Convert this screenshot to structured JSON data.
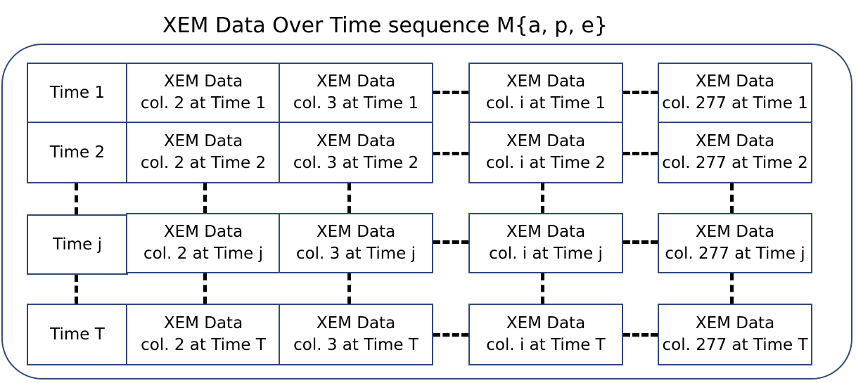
{
  "title": "XEM Data Over Time sequence M{a, p, e}",
  "colors": {
    "border": "#2f4a7c",
    "connector": "#000000"
  },
  "rows": [
    {
      "label": "Time 1",
      "cells": [
        {
          "line1": "XEM Data",
          "line2": "col. 2 at Time 1"
        },
        {
          "line1": "XEM Data",
          "line2": "col. 3 at Time 1"
        },
        {
          "line1": "XEM Data",
          "line2": "col. i at Time 1"
        },
        {
          "line1": "XEM Data",
          "line2": "col. 277 at Time 1"
        }
      ]
    },
    {
      "label": "Time 2",
      "cells": [
        {
          "line1": "XEM Data",
          "line2": "col. 2 at Time 2"
        },
        {
          "line1": "XEM Data",
          "line2": "col. 3 at Time 2"
        },
        {
          "line1": "XEM Data",
          "line2": "col. i at Time 2"
        },
        {
          "line1": "XEM Data",
          "line2": "col. 277 at Time 2"
        }
      ]
    },
    {
      "label": "Time j",
      "cells": [
        {
          "line1": "XEM Data",
          "line2": "col. 2 at Time j"
        },
        {
          "line1": "XEM Data",
          "line2": "col. 3 at Time j"
        },
        {
          "line1": "XEM Data",
          "line2": "col. i at Time j"
        },
        {
          "line1": "XEM Data",
          "line2": "col. 277 at Time j"
        }
      ]
    },
    {
      "label": "Time T",
      "cells": [
        {
          "line1": "XEM Data",
          "line2": "col. 2 at Time T"
        },
        {
          "line1": "XEM Data",
          "line2": "col. 3 at Time T"
        },
        {
          "line1": "XEM Data",
          "line2": "col. i at Time T"
        },
        {
          "line1": "XEM Data",
          "line2": "col. 277 at Time T"
        }
      ]
    }
  ]
}
